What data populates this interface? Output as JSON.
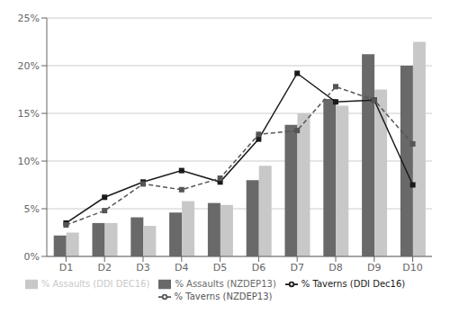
{
  "chart_data": {
    "type": "bar",
    "categories": [
      "D1",
      "D2",
      "D3",
      "D4",
      "D5",
      "D6",
      "D7",
      "D8",
      "D9",
      "D10"
    ],
    "series": [
      {
        "name": "% Assaults (NZDEP13)",
        "type": "bar",
        "color": "#696969",
        "values": [
          2.2,
          3.5,
          4.1,
          4.6,
          5.6,
          8.0,
          13.8,
          16.5,
          21.2,
          20.0
        ]
      },
      {
        "name": "% Assaults (DDI DEC16)",
        "type": "bar",
        "color": "#c8c8c8",
        "values": [
          2.5,
          3.5,
          3.2,
          5.8,
          5.4,
          9.5,
          15.0,
          15.8,
          17.5,
          22.5
        ]
      },
      {
        "name": "% Taverns (DDI Dec16)",
        "type": "line",
        "color": "#1a1a1a",
        "marker": "square",
        "line_style": "solid",
        "values": [
          3.5,
          6.2,
          7.8,
          9.0,
          7.8,
          12.3,
          19.2,
          16.2,
          16.4,
          7.5
        ]
      },
      {
        "name": "% Taverns (NZDEP13)",
        "type": "line",
        "color": "#555555",
        "marker": "square",
        "line_style": "dashed",
        "values": [
          3.3,
          4.8,
          7.6,
          7.0,
          8.2,
          12.8,
          13.2,
          17.8,
          16.4,
          11.8
        ]
      }
    ],
    "ylim": [
      0,
      25
    ],
    "yticks": [
      {
        "value": 0,
        "label": "0%"
      },
      {
        "value": 5,
        "label": "5%"
      },
      {
        "value": 10,
        "label": "10%"
      },
      {
        "value": 15,
        "label": "15%"
      },
      {
        "value": 20,
        "label": "20%"
      },
      {
        "value": 25,
        "label": "25%"
      }
    ],
    "grid": true,
    "legend": "bottom"
  }
}
